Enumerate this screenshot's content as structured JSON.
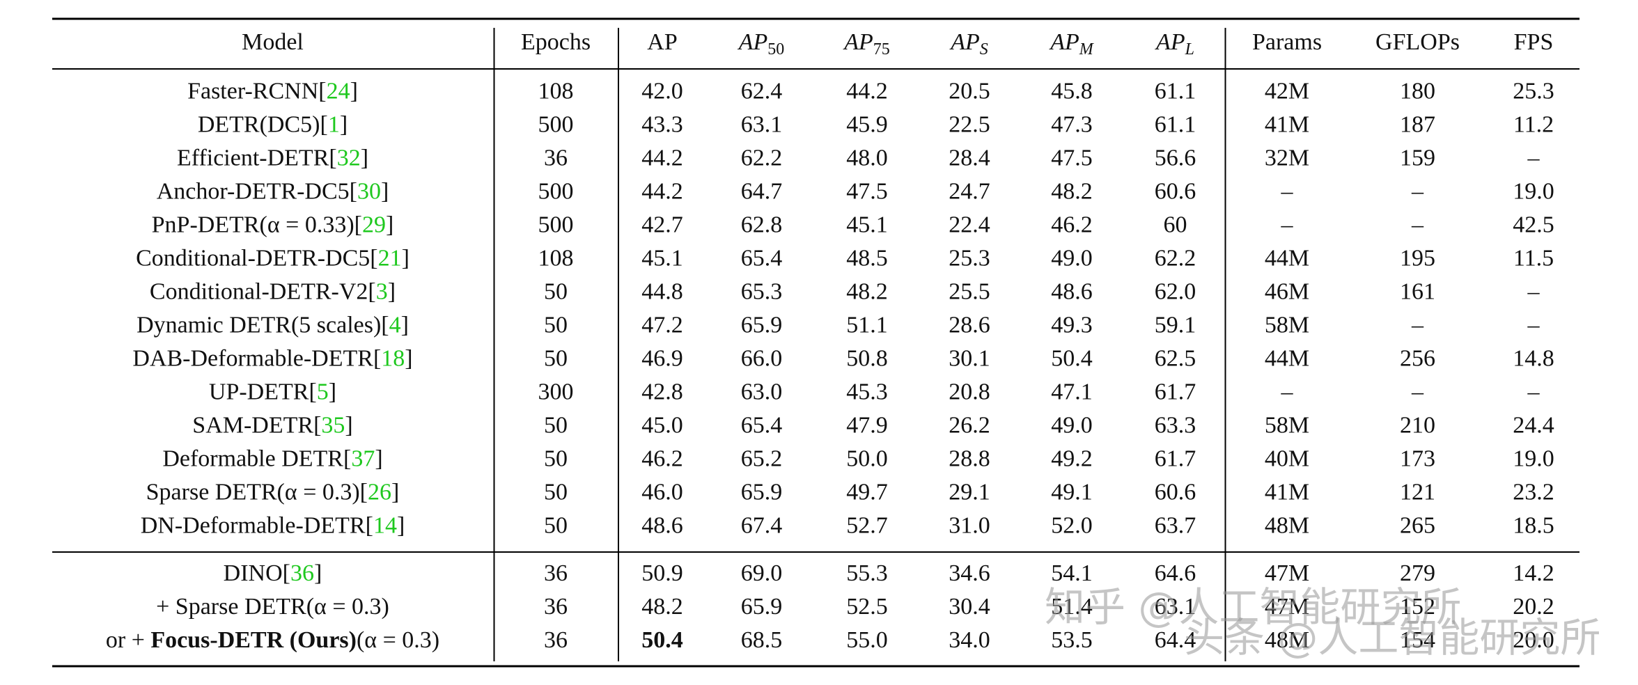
{
  "table": {
    "header": [
      {
        "text": "Model"
      },
      {
        "text": "Epochs"
      },
      {
        "text": "AP"
      },
      {
        "text": "AP",
        "sub": "50",
        "italic": true
      },
      {
        "text": "AP",
        "sub": "75",
        "italic": true
      },
      {
        "text": "AP",
        "sub": "S",
        "italic": true
      },
      {
        "text": "AP",
        "sub": "M",
        "italic": true
      },
      {
        "text": "AP",
        "sub": "L",
        "italic": true
      },
      {
        "text": "Params"
      },
      {
        "text": "GFLOPs"
      },
      {
        "text": "FPS"
      }
    ],
    "groups": [
      [
        {
          "model": [
            {
              "text": "Faster-RCNN["
            },
            {
              "text": "24",
              "color": "#1ec81e"
            },
            {
              "text": "]"
            }
          ],
          "values": [
            "108",
            "42.0",
            "62.4",
            "44.2",
            "20.5",
            "45.8",
            "61.1",
            "42M",
            "180",
            "25.3"
          ]
        },
        {
          "model": [
            {
              "text": "DETR(DC5)["
            },
            {
              "text": "1",
              "color": "#1ec81e"
            },
            {
              "text": "]"
            }
          ],
          "values": [
            "500",
            "43.3",
            "63.1",
            "45.9",
            "22.5",
            "47.3",
            "61.1",
            "41M",
            "187",
            "11.2"
          ]
        },
        {
          "model": [
            {
              "text": "Efficient-DETR["
            },
            {
              "text": "32",
              "color": "#1ec81e"
            },
            {
              "text": "]"
            }
          ],
          "values": [
            "36",
            "44.2",
            "62.2",
            "48.0",
            "28.4",
            "47.5",
            "56.6",
            "32M",
            "159",
            "–"
          ]
        },
        {
          "model": [
            {
              "text": "Anchor-DETR-DC5["
            },
            {
              "text": "30",
              "color": "#1ec81e"
            },
            {
              "text": "]"
            }
          ],
          "values": [
            "500",
            "44.2",
            "64.7",
            "47.5",
            "24.7",
            "48.2",
            "60.6",
            "–",
            "–",
            "19.0"
          ]
        },
        {
          "model": [
            {
              "text": "PnP-DETR(α = 0.33)["
            },
            {
              "text": "29",
              "color": "#1ec81e"
            },
            {
              "text": "]"
            }
          ],
          "values": [
            "500",
            "42.7",
            "62.8",
            "45.1",
            "22.4",
            "46.2",
            "60",
            "–",
            "–",
            "42.5"
          ]
        },
        {
          "model": [
            {
              "text": "Conditional-DETR-DC5["
            },
            {
              "text": "21",
              "color": "#1ec81e"
            },
            {
              "text": "]"
            }
          ],
          "values": [
            "108",
            "45.1",
            "65.4",
            "48.5",
            "25.3",
            "49.0",
            "62.2",
            "44M",
            "195",
            "11.5"
          ]
        },
        {
          "model": [
            {
              "text": "Conditional-DETR-V2["
            },
            {
              "text": "3",
              "color": "#1ec81e"
            },
            {
              "text": "]"
            }
          ],
          "values": [
            "50",
            "44.8",
            "65.3",
            "48.2",
            "25.5",
            "48.6",
            "62.0",
            "46M",
            "161",
            "–"
          ]
        },
        {
          "model": [
            {
              "text": "Dynamic DETR(5 scales)["
            },
            {
              "text": "4",
              "color": "#1ec81e"
            },
            {
              "text": "]"
            }
          ],
          "values": [
            "50",
            "47.2",
            "65.9",
            "51.1",
            "28.6",
            "49.3",
            "59.1",
            "58M",
            "–",
            "–"
          ]
        },
        {
          "model": [
            {
              "text": "DAB-Deformable-DETR["
            },
            {
              "text": "18",
              "color": "#1ec81e"
            },
            {
              "text": "]"
            }
          ],
          "values": [
            "50",
            "46.9",
            "66.0",
            "50.8",
            "30.1",
            "50.4",
            "62.5",
            "44M",
            "256",
            "14.8"
          ]
        },
        {
          "model": [
            {
              "text": "UP-DETR["
            },
            {
              "text": "5",
              "color": "#1ec81e"
            },
            {
              "text": "]"
            }
          ],
          "values": [
            "300",
            "42.8",
            "63.0",
            "45.3",
            "20.8",
            "47.1",
            "61.7",
            "–",
            "–",
            "–"
          ]
        },
        {
          "model": [
            {
              "text": "SAM-DETR["
            },
            {
              "text": "35",
              "color": "#1ec81e"
            },
            {
              "text": "]"
            }
          ],
          "values": [
            "50",
            "45.0",
            "65.4",
            "47.9",
            "26.2",
            "49.0",
            "63.3",
            "58M",
            "210",
            "24.4"
          ]
        },
        {
          "model": [
            {
              "text": "Deformable DETR["
            },
            {
              "text": "37",
              "color": "#1ec81e"
            },
            {
              "text": "]"
            }
          ],
          "values": [
            "50",
            "46.2",
            "65.2",
            "50.0",
            "28.8",
            "49.2",
            "61.7",
            "40M",
            "173",
            "19.0"
          ]
        },
        {
          "model": [
            {
              "text": "Sparse DETR(α = 0.3)["
            },
            {
              "text": "26",
              "color": "#1ec81e"
            },
            {
              "text": "]"
            }
          ],
          "values": [
            "50",
            "46.0",
            "65.9",
            "49.7",
            "29.1",
            "49.1",
            "60.6",
            "41M",
            "121",
            "23.2"
          ]
        },
        {
          "model": [
            {
              "text": "DN-Deformable-DETR["
            },
            {
              "text": "14",
              "color": "#1ec81e"
            },
            {
              "text": "]"
            }
          ],
          "values": [
            "50",
            "48.6",
            "67.4",
            "52.7",
            "31.0",
            "52.0",
            "63.7",
            "48M",
            "265",
            "18.5"
          ]
        }
      ],
      [
        {
          "model": [
            {
              "text": "DINO["
            },
            {
              "text": "36",
              "color": "#1ec81e"
            },
            {
              "text": "]"
            }
          ],
          "values": [
            "36",
            "50.9",
            "69.0",
            "55.3",
            "34.6",
            "54.1",
            "64.6",
            "47M",
            "279",
            "14.2"
          ]
        },
        {
          "model": [
            {
              "text": "+ Sparse DETR(α = 0.3)"
            }
          ],
          "values": [
            "36",
            "48.2",
            "65.9",
            "52.5",
            "30.4",
            "51.4",
            "63.1",
            "47M",
            "152",
            "20.2"
          ]
        },
        {
          "model": [
            {
              "text": "or + "
            },
            {
              "text": "Focus-DETR (Ours)",
              "bold": true
            },
            {
              "text": "(α = 0.3)"
            }
          ],
          "values": [
            "36",
            "50.4",
            "68.5",
            "55.0",
            "34.0",
            "53.5",
            "64.4",
            "48M",
            "154",
            "20.0"
          ],
          "bold": [
            1
          ]
        }
      ]
    ]
  },
  "watermarks": [
    "知乎 @人工智能研究所",
    "头条 @人工智能研究所"
  ]
}
